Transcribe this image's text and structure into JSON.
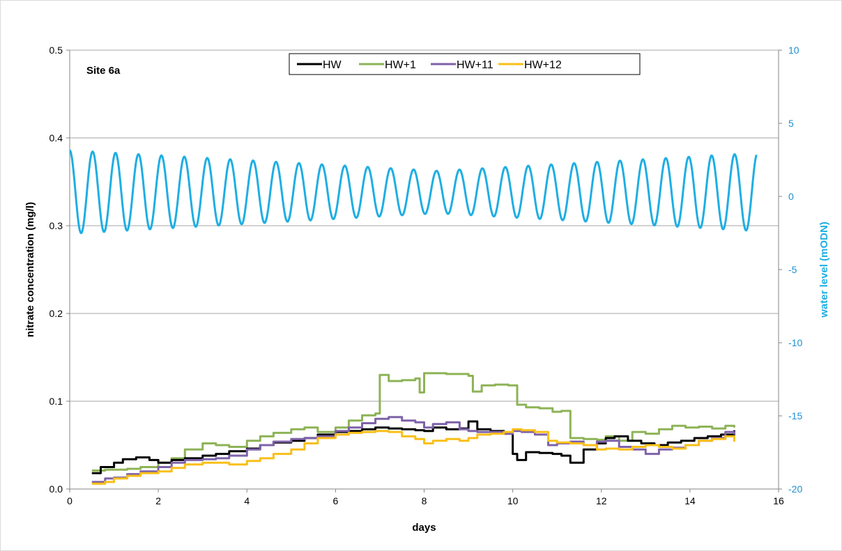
{
  "chart_data": {
    "type": "line",
    "annotation": "Site 6a",
    "xlabel": "days",
    "ylabel": "nitrate concentration (mg/l)",
    "y2label": "water level (mODN)",
    "xlim": [
      0,
      16
    ],
    "ylim": [
      0,
      0.5
    ],
    "y2lim": [
      -20,
      10
    ],
    "xticks": [
      "0",
      "2",
      "4",
      "6",
      "8",
      "10",
      "12",
      "14",
      "16"
    ],
    "yticks": [
      "0.0",
      "0.1",
      "0.2",
      "0.3",
      "0.4",
      "0.5"
    ],
    "y2ticks": [
      "-20",
      "-15",
      "-10",
      "-5",
      "0",
      "5",
      "10"
    ],
    "grid": "horizontal",
    "legend_position": "top-center",
    "series": [
      {
        "name": "HW",
        "axis": "left",
        "color": "#000000",
        "x": [
          0.5,
          0.7,
          1.0,
          1.2,
          1.5,
          1.8,
          2.0,
          2.3,
          2.6,
          3.0,
          3.3,
          3.6,
          4.0,
          4.3,
          4.6,
          5.0,
          5.3,
          5.6,
          6.0,
          6.3,
          6.6,
          6.9,
          7.2,
          7.5,
          7.8,
          8.0,
          8.2,
          8.5,
          8.8,
          9.0,
          9.2,
          9.5,
          9.8,
          10.0,
          10.1,
          10.3,
          10.6,
          10.9,
          11.1,
          11.3,
          11.6,
          11.9,
          12.1,
          12.3,
          12.6,
          12.9,
          13.2,
          13.5,
          13.8,
          14.1,
          14.4,
          14.7,
          15.0
        ],
        "y": [
          0.018,
          0.025,
          0.03,
          0.034,
          0.036,
          0.033,
          0.03,
          0.033,
          0.035,
          0.038,
          0.04,
          0.043,
          0.046,
          0.05,
          0.053,
          0.055,
          0.058,
          0.062,
          0.065,
          0.066,
          0.068,
          0.07,
          0.069,
          0.068,
          0.067,
          0.066,
          0.07,
          0.068,
          0.069,
          0.077,
          0.068,
          0.066,
          0.063,
          0.04,
          0.033,
          0.042,
          0.041,
          0.04,
          0.038,
          0.03,
          0.045,
          0.052,
          0.058,
          0.06,
          0.055,
          0.052,
          0.05,
          0.053,
          0.055,
          0.058,
          0.06,
          0.062,
          0.067
        ]
      },
      {
        "name": "HW+1",
        "axis": "left",
        "color": "#8db356",
        "x": [
          0.5,
          0.8,
          1.0,
          1.3,
          1.6,
          2.0,
          2.3,
          2.6,
          3.0,
          3.3,
          3.6,
          4.0,
          4.3,
          4.6,
          5.0,
          5.3,
          5.6,
          6.0,
          6.3,
          6.6,
          6.9,
          7.0,
          7.2,
          7.5,
          7.8,
          7.9,
          8.0,
          8.2,
          8.5,
          8.8,
          9.0,
          9.1,
          9.3,
          9.6,
          9.9,
          10.1,
          10.3,
          10.6,
          10.9,
          11.1,
          11.3,
          11.6,
          11.9,
          12.1,
          12.4,
          12.7,
          13.0,
          13.3,
          13.6,
          13.9,
          14.2,
          14.5,
          14.8,
          15.0
        ],
        "y": [
          0.021,
          0.022,
          0.022,
          0.023,
          0.025,
          0.03,
          0.035,
          0.045,
          0.052,
          0.05,
          0.048,
          0.055,
          0.06,
          0.064,
          0.068,
          0.07,
          0.065,
          0.07,
          0.078,
          0.084,
          0.086,
          0.13,
          0.123,
          0.124,
          0.126,
          0.11,
          0.132,
          0.132,
          0.131,
          0.131,
          0.129,
          0.111,
          0.118,
          0.119,
          0.118,
          0.096,
          0.093,
          0.092,
          0.088,
          0.089,
          0.058,
          0.057,
          0.056,
          0.06,
          0.055,
          0.065,
          0.063,
          0.068,
          0.072,
          0.07,
          0.071,
          0.069,
          0.072,
          0.07
        ]
      },
      {
        "name": "HW+11",
        "axis": "left",
        "color": "#7e62a8",
        "x": [
          0.5,
          0.8,
          1.0,
          1.3,
          1.6,
          2.0,
          2.3,
          2.6,
          3.0,
          3.3,
          3.6,
          4.0,
          4.3,
          4.6,
          5.0,
          5.3,
          5.6,
          6.0,
          6.3,
          6.6,
          6.9,
          7.2,
          7.5,
          7.8,
          8.0,
          8.2,
          8.5,
          8.8,
          9.0,
          9.2,
          9.5,
          9.8,
          10.0,
          10.2,
          10.5,
          10.8,
          11.0,
          11.3,
          11.6,
          11.9,
          12.1,
          12.4,
          12.7,
          13.0,
          13.3,
          13.6,
          13.9,
          14.2,
          14.5,
          14.8,
          15.0
        ],
        "y": [
          0.008,
          0.012,
          0.013,
          0.017,
          0.02,
          0.025,
          0.03,
          0.033,
          0.034,
          0.035,
          0.038,
          0.045,
          0.05,
          0.054,
          0.057,
          0.058,
          0.06,
          0.066,
          0.07,
          0.075,
          0.08,
          0.082,
          0.078,
          0.076,
          0.07,
          0.074,
          0.076,
          0.068,
          0.066,
          0.065,
          0.065,
          0.063,
          0.066,
          0.065,
          0.062,
          0.05,
          0.052,
          0.054,
          0.05,
          0.054,
          0.055,
          0.048,
          0.045,
          0.04,
          0.045,
          0.047,
          0.05,
          0.055,
          0.058,
          0.065,
          0.062
        ]
      },
      {
        "name": "HW+12",
        "axis": "left",
        "color": "#f9bf18",
        "x": [
          0.5,
          0.8,
          1.0,
          1.3,
          1.6,
          2.0,
          2.3,
          2.6,
          3.0,
          3.3,
          3.6,
          4.0,
          4.3,
          4.6,
          5.0,
          5.3,
          5.6,
          6.0,
          6.3,
          6.6,
          6.9,
          7.2,
          7.5,
          7.8,
          8.0,
          8.2,
          8.5,
          8.8,
          9.0,
          9.2,
          9.5,
          9.8,
          10.0,
          10.2,
          10.5,
          10.8,
          11.0,
          11.3,
          11.6,
          11.9,
          12.1,
          12.4,
          12.7,
          13.0,
          13.3,
          13.6,
          13.9,
          14.2,
          14.5,
          14.8,
          15.0
        ],
        "y": [
          0.006,
          0.008,
          0.012,
          0.015,
          0.018,
          0.02,
          0.024,
          0.028,
          0.03,
          0.03,
          0.028,
          0.032,
          0.035,
          0.04,
          0.045,
          0.052,
          0.058,
          0.062,
          0.064,
          0.065,
          0.066,
          0.065,
          0.06,
          0.057,
          0.052,
          0.055,
          0.057,
          0.055,
          0.058,
          0.062,
          0.063,
          0.065,
          0.068,
          0.067,
          0.065,
          0.055,
          0.053,
          0.052,
          0.05,
          0.045,
          0.046,
          0.045,
          0.048,
          0.05,
          0.048,
          0.046,
          0.05,
          0.055,
          0.057,
          0.06,
          0.054
        ]
      },
      {
        "name": "water level",
        "axis": "right",
        "color": "#1eaee3",
        "type": "sinusoid",
        "x_start": 0,
        "x_end": 15.5,
        "period_days": 0.5175,
        "amplitude_max": 2.85,
        "amplitude_min": 1.45,
        "amplitude_min_at_day": 8.3,
        "offset": 0.3,
        "starts_at_peak": true
      }
    ]
  }
}
